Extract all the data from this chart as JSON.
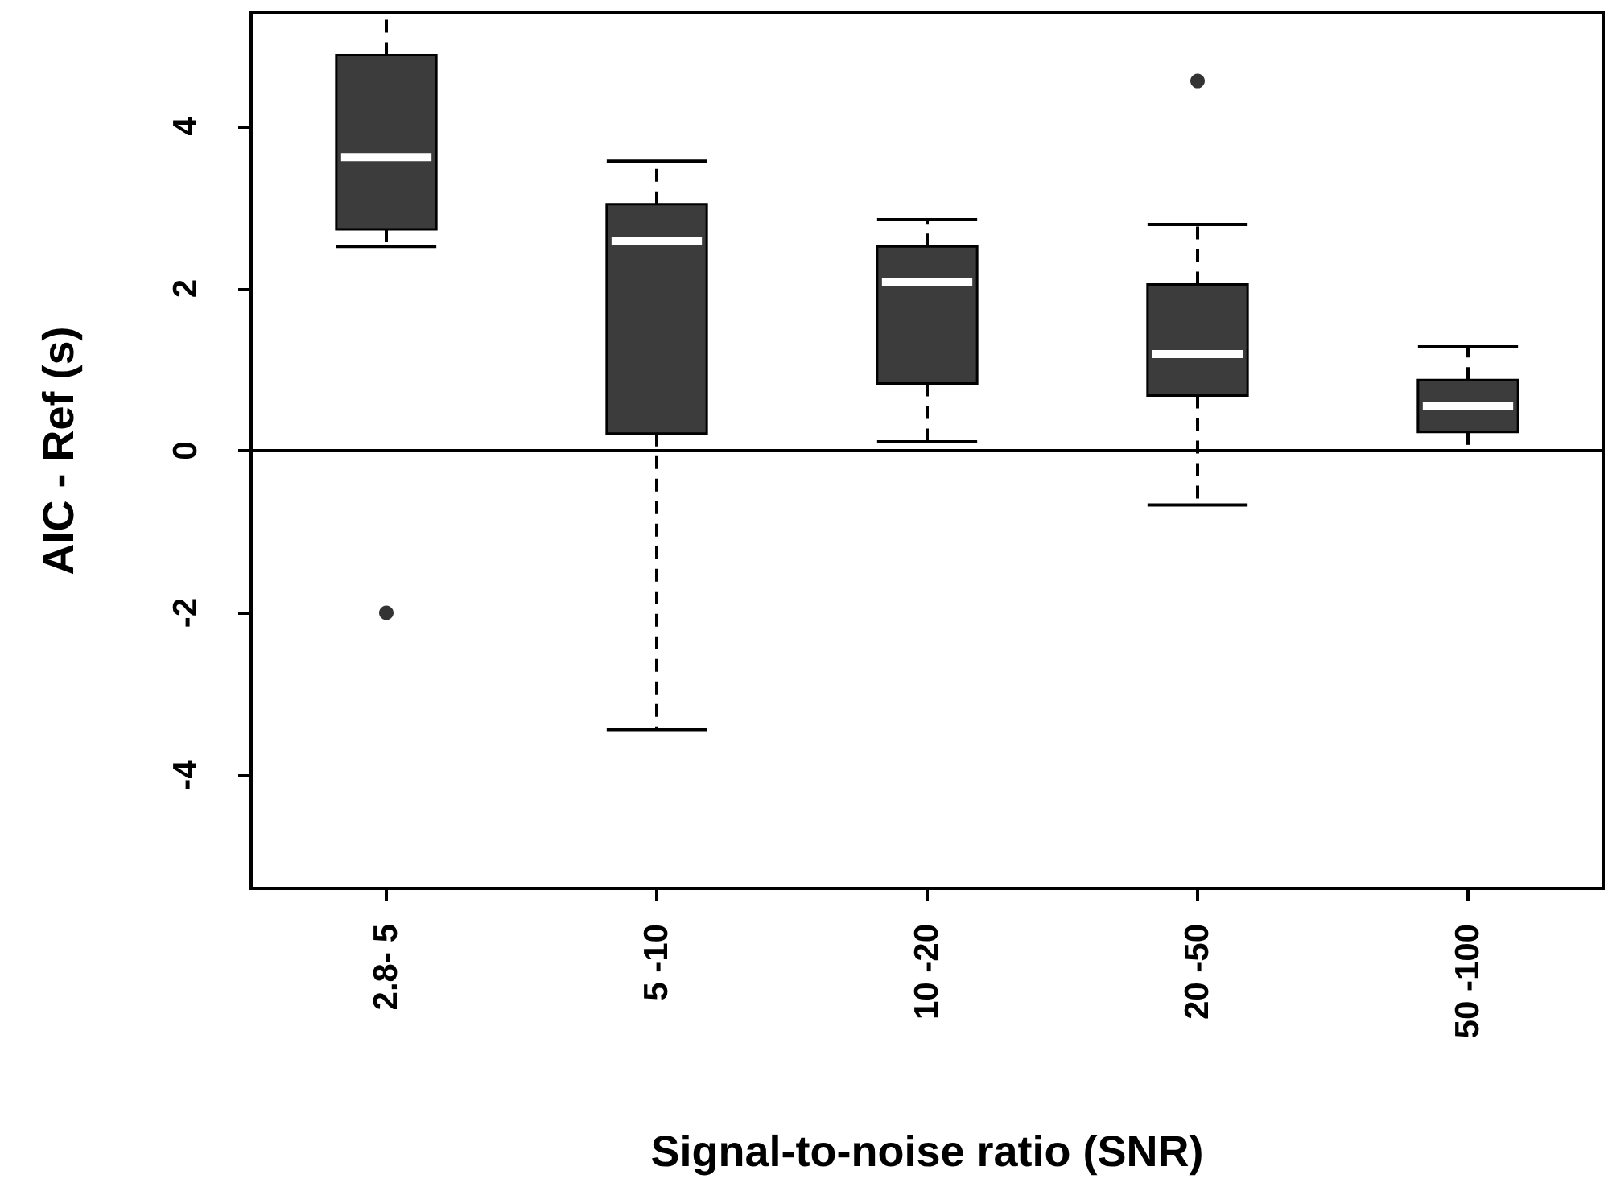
{
  "chart_data": {
    "type": "box",
    "xlabel": "Signal-to-noise ratio (SNR)",
    "ylabel": "AIC - Ref (s)",
    "categories": [
      "2.8- 5",
      "5 -10",
      "10 -20",
      "20 -50",
      "50 -100"
    ],
    "ylim": [
      -5.4,
      5.4
    ],
    "yticks": [
      -4,
      -2,
      0,
      2,
      4
    ],
    "grid": false,
    "series": [
      {
        "color": "#3c3c3c",
        "boxes": [
          {
            "low": 2.52,
            "q1": 2.73,
            "median": 3.62,
            "q3": 4.88,
            "high": 5.4,
            "outliers": [
              -2.0
            ]
          },
          {
            "low": -3.44,
            "q1": 0.21,
            "median": 2.59,
            "q3": 3.04,
            "high": 3.57
          },
          {
            "low": 0.11,
            "q1": 0.83,
            "median": 2.08,
            "q3": 2.52,
            "high": 2.85
          },
          {
            "low": -0.67,
            "q1": 0.68,
            "median": 1.19,
            "q3": 2.05,
            "high": 2.79,
            "outliers": [
              4.56
            ]
          },
          {
            "low": 0,
            "q1": 0.23,
            "median": 0.55,
            "q3": 0.87,
            "high": 1.28
          }
        ]
      }
    ],
    "ref_lines": [
      {
        "axis": "y",
        "value": 0,
        "label": null,
        "color": "#000000"
      }
    ]
  }
}
